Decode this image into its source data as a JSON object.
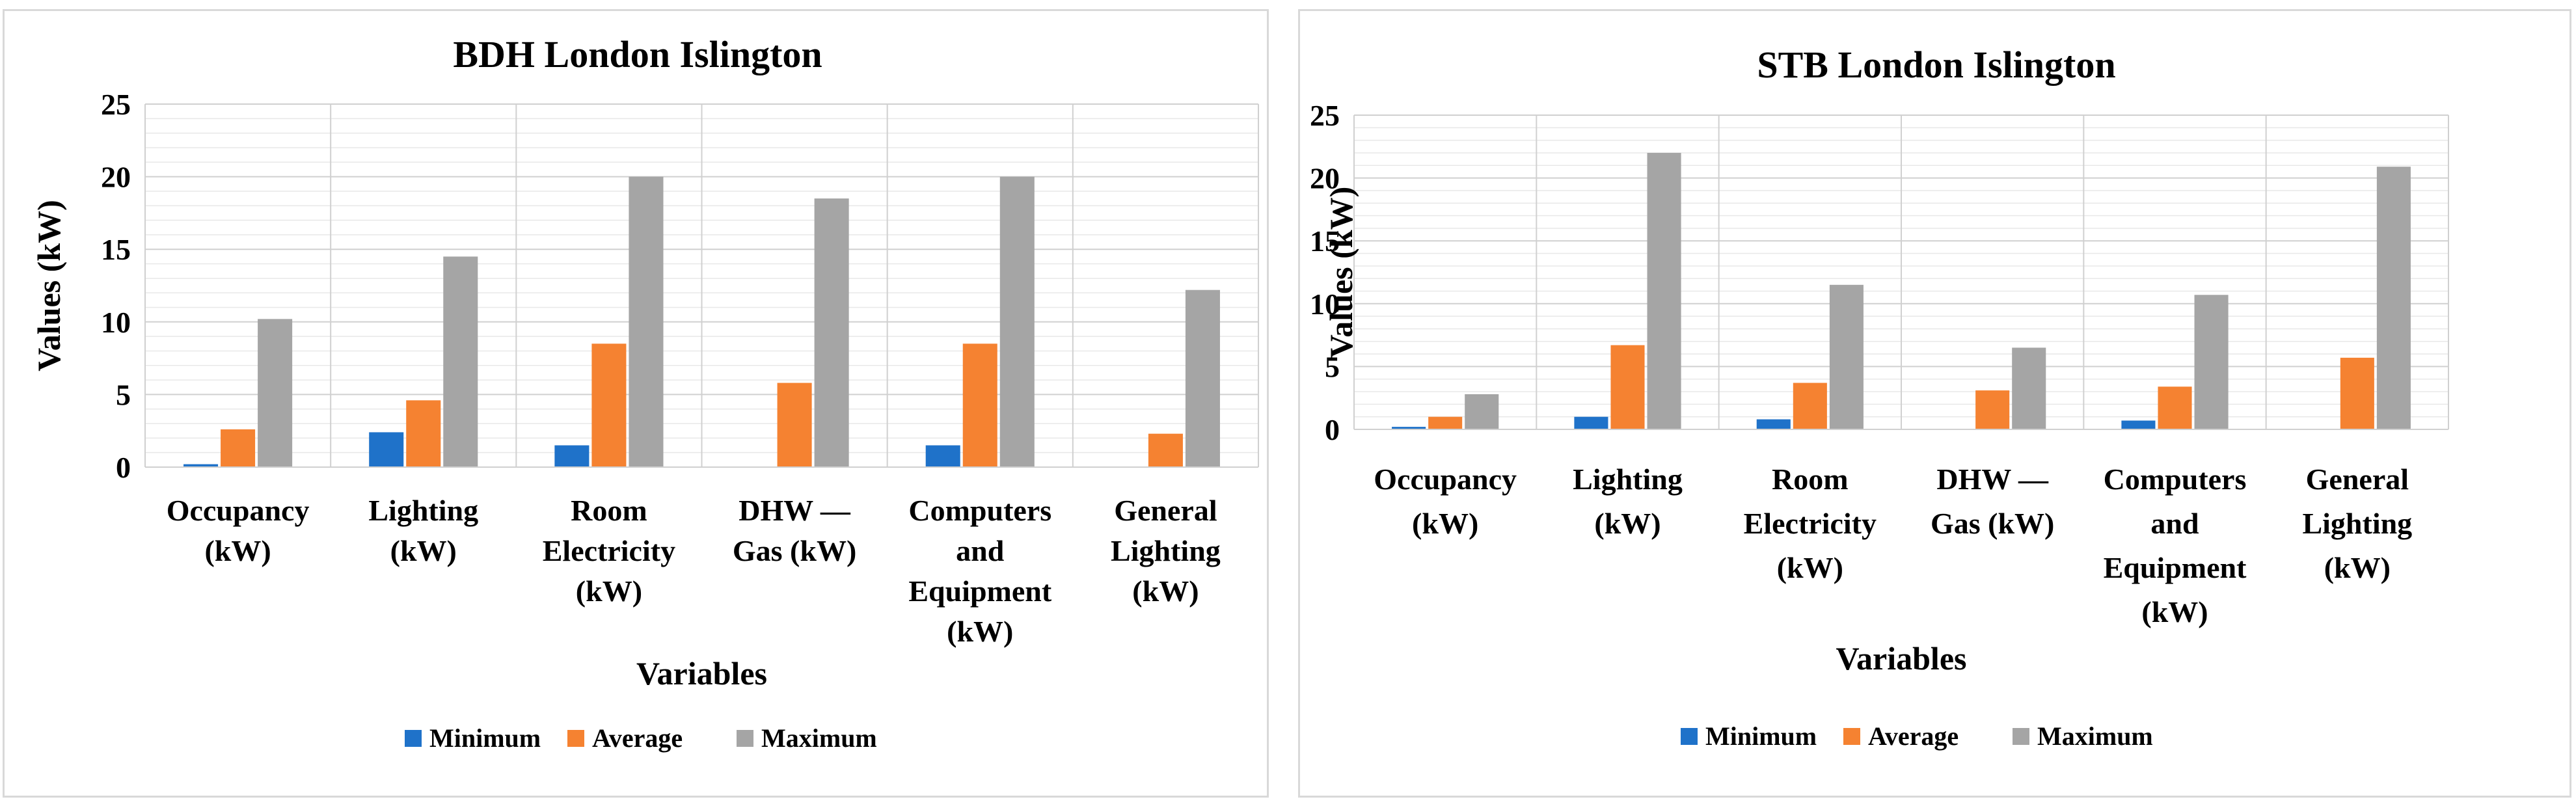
{
  "chart_data": [
    {
      "type": "bar",
      "title": "BDH London Islington",
      "xlabel": "Variables",
      "ylabel": "Values (kW)",
      "ylim": [
        0,
        25
      ],
      "yticks": [
        "0",
        "5",
        "10",
        "15",
        "20",
        "25"
      ],
      "grid": true,
      "legend_position": "bottom",
      "categories": [
        [
          "Occupancy",
          "(kW)"
        ],
        [
          "Lighting",
          "(kW)"
        ],
        [
          "Room",
          "Electricity",
          "(kW)"
        ],
        [
          "DHW —",
          "Gas (kW)"
        ],
        [
          "Computers",
          "and",
          "Equipment",
          "(kW)"
        ],
        [
          "General",
          "Lighting",
          "(kW)"
        ]
      ],
      "series": [
        {
          "name": "Minimum",
          "color": "#1f72c9",
          "values": [
            0.2,
            2.4,
            1.5,
            0,
            1.5,
            0
          ]
        },
        {
          "name": "Average",
          "color": "#f58231",
          "values": [
            2.6,
            4.6,
            8.5,
            5.8,
            8.5,
            2.3
          ]
        },
        {
          "name": "Maximum",
          "color": "#a5a5a5",
          "values": [
            10.2,
            14.5,
            20.0,
            18.5,
            20.0,
            12.2
          ]
        }
      ]
    },
    {
      "type": "bar",
      "title": "STB London Islington",
      "xlabel": "Variables",
      "ylabel": "Values (kW)",
      "ylim": [
        0,
        25
      ],
      "yticks": [
        "0",
        "5",
        "10",
        "15",
        "20",
        "25"
      ],
      "grid": true,
      "legend_position": "bottom",
      "categories": [
        [
          "Occupancy",
          "(kW)"
        ],
        [
          "Lighting",
          "(kW)"
        ],
        [
          "Room",
          "Electricity",
          "(kW)"
        ],
        [
          "DHW —",
          "Gas (kW)"
        ],
        [
          "Computers",
          "and",
          "Equipment",
          "(kW)"
        ],
        [
          "General",
          "Lighting",
          "(kW)"
        ]
      ],
      "series": [
        {
          "name": "Minimum",
          "color": "#1f72c9",
          "values": [
            0.2,
            1.0,
            0.8,
            0,
            0.7,
            0
          ]
        },
        {
          "name": "Average",
          "color": "#f58231",
          "values": [
            1.0,
            6.7,
            3.7,
            3.1,
            3.4,
            5.7
          ]
        },
        {
          "name": "Maximum",
          "color": "#a5a5a5",
          "values": [
            2.8,
            22.0,
            11.5,
            6.5,
            10.7,
            20.9
          ]
        }
      ]
    }
  ]
}
